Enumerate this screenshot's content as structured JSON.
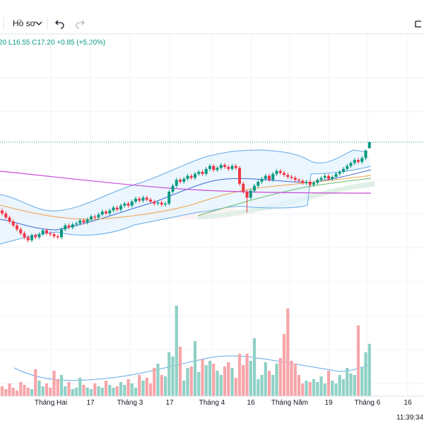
{
  "toolbar": {
    "profile": "Hồ sơ"
  },
  "legend": "20 L16.55 C17.20 +0.85 (+5.20%)",
  "chart_data": {
    "type": "candlestick",
    "open": [
      10.3,
      10.0,
      9.6,
      9.2,
      8.8,
      8.4,
      8.0,
      7.6,
      7.3,
      7.8,
      7.6,
      7.9,
      8.3,
      8.0,
      7.9,
      7.7,
      7.6,
      8.4,
      8.8,
      8.6,
      8.9,
      9.0,
      9.3,
      9.1,
      9.4,
      9.7,
      9.6,
      9.9,
      10.2,
      10.0,
      10.3,
      10.6,
      10.4,
      10.8,
      11.0,
      10.8,
      11.2,
      11.5,
      11.3,
      11.6,
      11.4,
      11.2,
      11.0,
      11.1,
      10.9,
      11.0,
      12.2,
      12.8,
      13.4,
      13.2,
      13.5,
      13.8,
      13.6,
      14.0,
      14.2,
      14.0,
      14.5,
      14.8,
      14.4,
      14.6,
      14.9,
      14.7,
      14.5,
      14.8,
      14.6,
      13.0,
      12.2,
      11.6,
      12.3,
      12.8,
      13.2,
      13.5,
      13.8,
      13.4,
      14.0,
      14.3,
      14.1,
      13.9,
      13.7,
      13.6,
      13.4,
      13.3,
      13.1,
      13.2,
      12.9,
      13.1,
      13.4,
      13.6,
      13.8,
      13.5,
      13.7,
      14.0,
      14.2,
      14.5,
      14.8,
      15.1,
      15.4,
      15.2,
      15.6,
      16.6
    ],
    "high": [
      10.5,
      10.2,
      9.8,
      9.4,
      9.0,
      8.6,
      8.2,
      7.8,
      8.0,
      8.0,
      8.1,
      8.5,
      8.5,
      8.2,
      8.1,
      7.9,
      8.6,
      9.0,
      9.0,
      9.1,
      9.2,
      9.5,
      9.5,
      9.6,
      9.9,
      9.9,
      10.1,
      10.4,
      10.4,
      10.5,
      10.8,
      10.8,
      11.0,
      11.2,
      11.2,
      11.4,
      11.7,
      11.7,
      11.8,
      11.8,
      11.6,
      11.4,
      11.3,
      11.3,
      11.2,
      12.4,
      13.0,
      13.6,
      13.6,
      13.7,
      14.0,
      14.0,
      14.2,
      14.4,
      14.4,
      14.7,
      15.0,
      15.0,
      14.8,
      15.1,
      15.1,
      14.9,
      15.0,
      15.0,
      14.8,
      13.2,
      12.4,
      12.5,
      13.0,
      13.4,
      13.7,
      14.0,
      14.0,
      14.2,
      14.5,
      14.5,
      14.3,
      14.1,
      13.9,
      13.8,
      13.6,
      13.5,
      13.4,
      13.4,
      13.3,
      13.6,
      13.8,
      14.0,
      14.0,
      13.9,
      14.2,
      14.4,
      14.7,
      15.0,
      15.3,
      15.6,
      15.6,
      15.8,
      16.5,
      17.3
    ],
    "low": [
      9.8,
      9.4,
      9.0,
      8.6,
      8.2,
      7.8,
      7.4,
      7.1,
      7.1,
      7.4,
      7.4,
      7.7,
      7.8,
      7.7,
      7.5,
      7.4,
      7.4,
      8.2,
      8.4,
      8.4,
      8.7,
      8.8,
      8.9,
      8.9,
      9.2,
      9.4,
      9.4,
      9.7,
      9.8,
      9.8,
      10.1,
      10.2,
      10.2,
      10.6,
      10.6,
      10.6,
      11.0,
      11.1,
      11.1,
      11.2,
      11.0,
      10.8,
      10.8,
      10.7,
      10.7,
      10.8,
      12.0,
      12.6,
      13.0,
      13.0,
      13.3,
      13.4,
      13.4,
      13.8,
      13.8,
      13.8,
      14.3,
      14.2,
      14.2,
      14.4,
      14.5,
      14.3,
      14.3,
      14.4,
      12.8,
      12.0,
      10.1,
      11.4,
      12.1,
      12.6,
      13.0,
      13.3,
      13.2,
      13.2,
      13.8,
      13.9,
      13.7,
      13.5,
      13.4,
      13.2,
      13.1,
      12.9,
      12.9,
      12.7,
      12.7,
      12.9,
      13.2,
      13.4,
      13.3,
      13.3,
      13.5,
      13.8,
      14.0,
      14.3,
      14.6,
      14.9,
      15.0,
      15.0,
      15.4,
      16.55
    ],
    "close": [
      10.0,
      9.6,
      9.2,
      8.8,
      8.4,
      8.0,
      7.6,
      7.3,
      7.8,
      7.6,
      7.9,
      8.3,
      8.0,
      7.9,
      7.7,
      7.6,
      8.4,
      8.8,
      8.6,
      8.9,
      9.0,
      9.3,
      9.1,
      9.4,
      9.7,
      9.6,
      9.9,
      10.2,
      10.0,
      10.3,
      10.6,
      10.4,
      10.8,
      11.0,
      10.8,
      11.2,
      11.5,
      11.3,
      11.6,
      11.4,
      11.2,
      11.0,
      11.1,
      10.9,
      11.0,
      12.2,
      12.8,
      13.4,
      13.2,
      13.5,
      13.8,
      13.6,
      14.0,
      14.2,
      14.0,
      14.5,
      14.8,
      14.4,
      14.6,
      14.9,
      14.7,
      14.5,
      14.8,
      14.6,
      13.0,
      12.2,
      11.6,
      12.3,
      12.8,
      13.2,
      13.5,
      13.8,
      13.4,
      14.0,
      14.3,
      14.1,
      13.9,
      13.7,
      13.6,
      13.4,
      13.3,
      13.1,
      13.2,
      12.9,
      13.1,
      13.4,
      13.6,
      13.8,
      13.5,
      13.7,
      14.0,
      14.2,
      14.5,
      14.8,
      15.1,
      15.4,
      15.2,
      15.6,
      16.35,
      17.2
    ],
    "volume": [
      14,
      10,
      18,
      12,
      8,
      20,
      16,
      12,
      10,
      38,
      22,
      14,
      18,
      12,
      36,
      24,
      30,
      14,
      20,
      10,
      12,
      26,
      16,
      12,
      10,
      18,
      14,
      12,
      22,
      16,
      12,
      14,
      20,
      16,
      24,
      18,
      12,
      30,
      22,
      26,
      18,
      40,
      46,
      30,
      28,
      62,
      56,
      128,
      70,
      22,
      40,
      42,
      78,
      34,
      52,
      44,
      50,
      46,
      36,
      30,
      42,
      48,
      40,
      26,
      60,
      44,
      60,
      50,
      82,
      24,
      30,
      48,
      36,
      30,
      46,
      54,
      88,
      124,
      50,
      46,
      30,
      18,
      22,
      20,
      24,
      20,
      28,
      18,
      36,
      22,
      18,
      30,
      24,
      40,
      32,
      30,
      100,
      40,
      62,
      74
    ],
    "x_labels": [
      "Tháng Hai",
      "17",
      "Tháng 3",
      "17",
      "Tháng 4",
      "16",
      "Tháng Năm",
      "19",
      "Tháng 6",
      "16"
    ],
    "time": "11:39:34"
  }
}
